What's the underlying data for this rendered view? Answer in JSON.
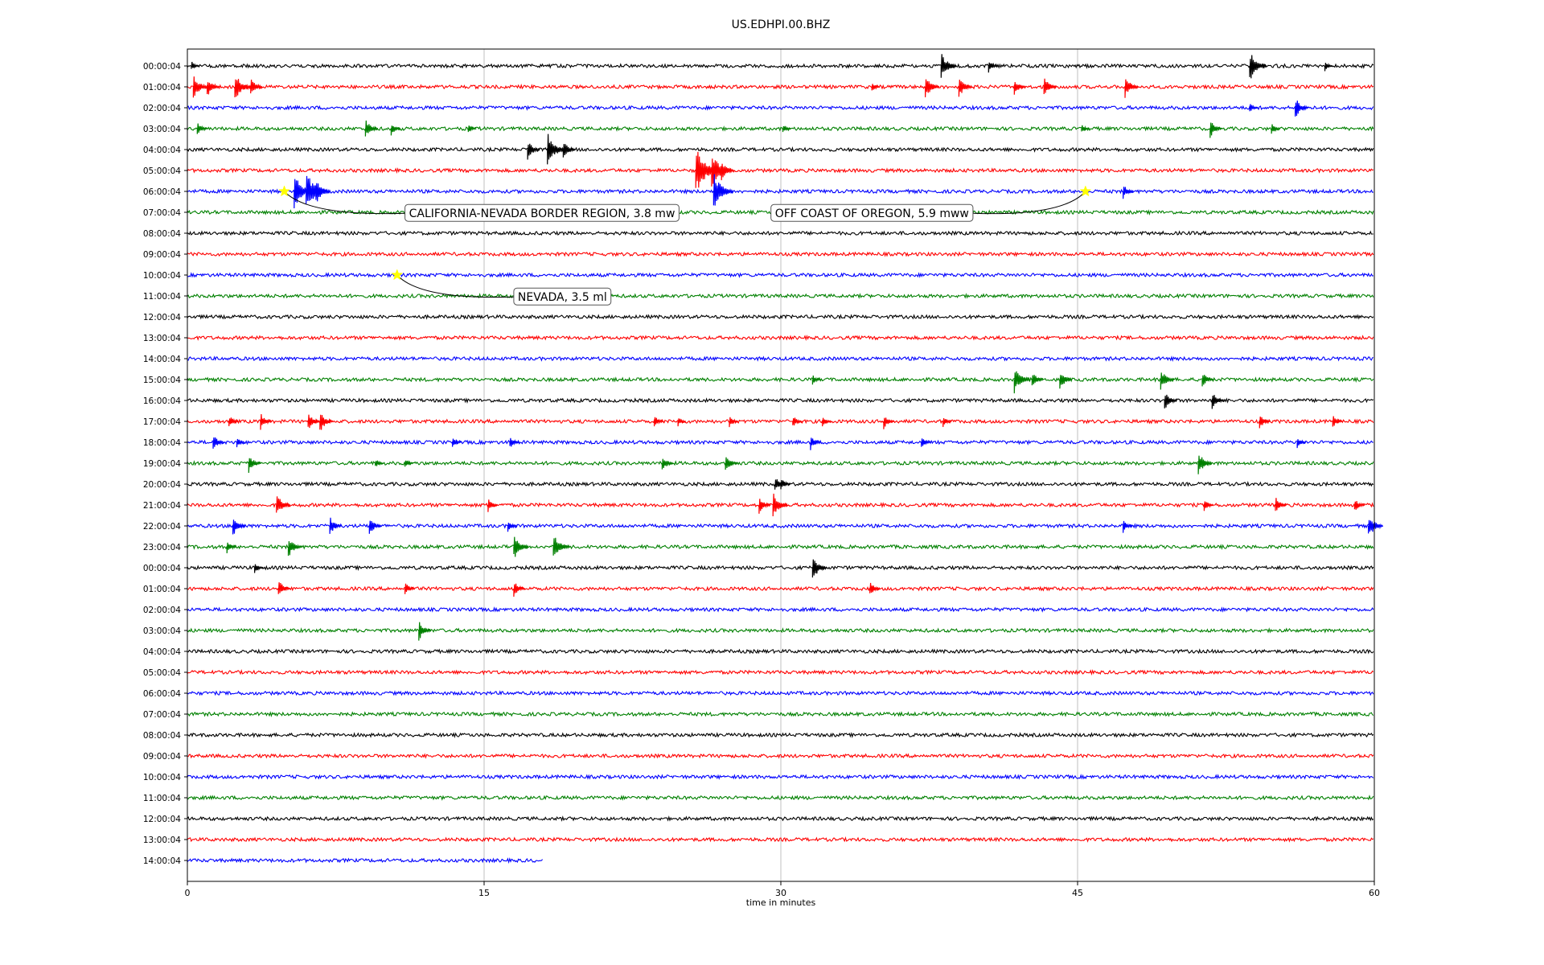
{
  "chart_data": {
    "type": "line",
    "title": "US.EDHPI.00.BHZ",
    "xlabel": "time in minutes",
    "ylabel": "",
    "xlim": [
      0,
      60
    ],
    "x_ticks": [
      "0",
      "15",
      "30",
      "45",
      "60"
    ],
    "x_tick_values": [
      0,
      15,
      30,
      45,
      60
    ],
    "grid": "vertical",
    "color_cycle": [
      "#000000",
      "#ff0000",
      "#0000ff",
      "#008000"
    ],
    "rows": [
      {
        "label": "00:00:04",
        "end": 60,
        "events": [
          {
            "t": 0.2,
            "a": 0.6
          },
          {
            "t": 38.1,
            "a": 1.6
          },
          {
            "t": 40.5,
            "a": 0.8
          },
          {
            "t": 53.7,
            "a": 1.8
          },
          {
            "t": 57.5,
            "a": 0.6
          }
        ]
      },
      {
        "label": "01:00:04",
        "end": 60,
        "events": [
          {
            "t": 0.3,
            "a": 1.5
          },
          {
            "t": 1.0,
            "a": 1.2
          },
          {
            "t": 2.4,
            "a": 1.7
          },
          {
            "t": 3.2,
            "a": 1.1
          },
          {
            "t": 34.6,
            "a": 0.6
          },
          {
            "t": 37.3,
            "a": 1.4
          },
          {
            "t": 39.0,
            "a": 1.3
          },
          {
            "t": 41.8,
            "a": 1.0
          },
          {
            "t": 43.3,
            "a": 1.2
          },
          {
            "t": 47.4,
            "a": 1.3
          }
        ]
      },
      {
        "label": "02:00:04",
        "end": 60,
        "events": [
          {
            "t": 53.7,
            "a": 0.6
          },
          {
            "t": 56.0,
            "a": 1.3
          }
        ]
      },
      {
        "label": "03:00:04",
        "end": 60,
        "events": [
          {
            "t": 0.5,
            "a": 0.8
          },
          {
            "t": 9.0,
            "a": 1.2
          },
          {
            "t": 10.3,
            "a": 0.8
          },
          {
            "t": 14.2,
            "a": 0.6
          },
          {
            "t": 30.1,
            "a": 0.6
          },
          {
            "t": 45.2,
            "a": 0.6
          },
          {
            "t": 51.7,
            "a": 1.1
          },
          {
            "t": 54.8,
            "a": 0.7
          }
        ]
      },
      {
        "label": "04:00:04",
        "end": 60,
        "events": [
          {
            "t": 17.2,
            "a": 1.2
          },
          {
            "t": 18.2,
            "a": 2.0
          },
          {
            "t": 19.0,
            "a": 1.1
          }
        ]
      },
      {
        "label": "05:00:04",
        "end": 60,
        "events": [
          {
            "t": 25.7,
            "a": 2.8
          },
          {
            "t": 26.5,
            "a": 2.2
          },
          {
            "t": 27.0,
            "a": 1.2
          }
        ]
      },
      {
        "label": "06:00:04",
        "end": 60,
        "events": [
          {
            "t": 5.4,
            "a": 2.2
          },
          {
            "t": 6.0,
            "a": 2.4
          },
          {
            "t": 6.5,
            "a": 1.5
          },
          {
            "t": 26.6,
            "a": 2.2
          },
          {
            "t": 47.3,
            "a": 0.9
          }
        ]
      },
      {
        "label": "07:00:04",
        "end": 60,
        "events": []
      },
      {
        "label": "08:00:04",
        "end": 60,
        "events": []
      },
      {
        "label": "09:00:04",
        "end": 60,
        "events": []
      },
      {
        "label": "10:00:04",
        "end": 60,
        "events": []
      },
      {
        "label": "11:00:04",
        "end": 60,
        "events": []
      },
      {
        "label": "12:00:04",
        "end": 60,
        "events": []
      },
      {
        "label": "13:00:04",
        "end": 60,
        "events": []
      },
      {
        "label": "14:00:04",
        "end": 60,
        "events": []
      },
      {
        "label": "15:00:04",
        "end": 60,
        "events": [
          {
            "t": 31.6,
            "a": 0.6
          },
          {
            "t": 41.8,
            "a": 1.6
          },
          {
            "t": 42.7,
            "a": 1.0
          },
          {
            "t": 44.1,
            "a": 1.2
          },
          {
            "t": 49.2,
            "a": 1.3
          },
          {
            "t": 51.3,
            "a": 1.0
          }
        ]
      },
      {
        "label": "16:00:04",
        "end": 60,
        "events": [
          {
            "t": 49.4,
            "a": 1.2
          },
          {
            "t": 51.8,
            "a": 1.1
          }
        ]
      },
      {
        "label": "17:00:04",
        "end": 60,
        "events": [
          {
            "t": 2.1,
            "a": 0.8
          },
          {
            "t": 3.7,
            "a": 1.0
          },
          {
            "t": 6.1,
            "a": 1.1
          },
          {
            "t": 6.7,
            "a": 1.3
          },
          {
            "t": 23.6,
            "a": 0.8
          },
          {
            "t": 24.8,
            "a": 0.6
          },
          {
            "t": 27.4,
            "a": 0.7
          },
          {
            "t": 30.6,
            "a": 0.8
          },
          {
            "t": 32.1,
            "a": 0.7
          },
          {
            "t": 35.2,
            "a": 0.9
          },
          {
            "t": 38.2,
            "a": 0.7
          },
          {
            "t": 54.2,
            "a": 0.9
          },
          {
            "t": 57.9,
            "a": 0.8
          }
        ]
      },
      {
        "label": "18:00:04",
        "end": 60,
        "events": [
          {
            "t": 1.3,
            "a": 1.0
          },
          {
            "t": 2.5,
            "a": 0.6
          },
          {
            "t": 13.4,
            "a": 0.7
          },
          {
            "t": 16.3,
            "a": 0.8
          },
          {
            "t": 31.5,
            "a": 0.9
          },
          {
            "t": 37.1,
            "a": 0.7
          },
          {
            "t": 56.1,
            "a": 0.7
          }
        ]
      },
      {
        "label": "19:00:04",
        "end": 60,
        "events": [
          {
            "t": 3.1,
            "a": 1.1
          },
          {
            "t": 9.5,
            "a": 0.6
          },
          {
            "t": 11.0,
            "a": 0.6
          },
          {
            "t": 24.0,
            "a": 1.0
          },
          {
            "t": 27.2,
            "a": 1.1
          },
          {
            "t": 51.1,
            "a": 1.4
          }
        ]
      },
      {
        "label": "20:00:04",
        "end": 60,
        "events": [
          {
            "t": 29.7,
            "a": 1.0
          },
          {
            "t": 30.0,
            "a": 0.8
          }
        ]
      },
      {
        "label": "21:00:04",
        "end": 60,
        "events": [
          {
            "t": 4.5,
            "a": 1.4
          },
          {
            "t": 15.2,
            "a": 0.8
          },
          {
            "t": 28.9,
            "a": 1.1
          },
          {
            "t": 29.6,
            "a": 1.5
          },
          {
            "t": 51.4,
            "a": 0.8
          },
          {
            "t": 55.0,
            "a": 1.0
          },
          {
            "t": 59.0,
            "a": 0.9
          }
        ]
      },
      {
        "label": "22:00:04",
        "end": 60,
        "events": [
          {
            "t": 2.3,
            "a": 1.2
          },
          {
            "t": 7.2,
            "a": 1.1
          },
          {
            "t": 9.2,
            "a": 1.1
          },
          {
            "t": 16.2,
            "a": 0.8
          },
          {
            "t": 47.3,
            "a": 0.8
          },
          {
            "t": 59.7,
            "a": 1.5
          }
        ]
      },
      {
        "label": "23:00:04",
        "end": 60,
        "events": [
          {
            "t": 2.0,
            "a": 0.8
          },
          {
            "t": 5.1,
            "a": 1.3
          },
          {
            "t": 16.5,
            "a": 1.5
          },
          {
            "t": 18.5,
            "a": 1.7
          }
        ]
      },
      {
        "label": "00:00:04",
        "end": 60,
        "events": [
          {
            "t": 3.4,
            "a": 0.7
          },
          {
            "t": 31.6,
            "a": 1.5
          }
        ]
      },
      {
        "label": "01:00:04",
        "end": 60,
        "events": [
          {
            "t": 4.6,
            "a": 1.1
          },
          {
            "t": 11.0,
            "a": 0.8
          },
          {
            "t": 16.5,
            "a": 1.0
          },
          {
            "t": 34.5,
            "a": 0.9
          }
        ]
      },
      {
        "label": "02:00:04",
        "end": 60,
        "events": []
      },
      {
        "label": "03:00:04",
        "end": 60,
        "events": [
          {
            "t": 11.7,
            "a": 1.2
          }
        ]
      },
      {
        "label": "04:00:04",
        "end": 60,
        "events": []
      },
      {
        "label": "05:00:04",
        "end": 60,
        "events": []
      },
      {
        "label": "06:00:04",
        "end": 60,
        "events": []
      },
      {
        "label": "07:00:04",
        "end": 60,
        "events": []
      },
      {
        "label": "08:00:04",
        "end": 60,
        "events": []
      },
      {
        "label": "09:00:04",
        "end": 60,
        "events": []
      },
      {
        "label": "10:00:04",
        "end": 60,
        "events": []
      },
      {
        "label": "11:00:04",
        "end": 60,
        "events": []
      },
      {
        "label": "12:00:04",
        "end": 60,
        "events": []
      },
      {
        "label": "13:00:04",
        "end": 60,
        "events": []
      },
      {
        "label": "14:00:04",
        "end": 18,
        "events": []
      }
    ],
    "annotations": [
      {
        "label": "CALIFORNIA-NEVADA BORDER REGION, 3.8 mw",
        "row": 6,
        "t": 4.9,
        "label_t": 11.0,
        "label_row": 7.2
      },
      {
        "label": "OFF COAST OF OREGON, 5.9 mww",
        "row": 6,
        "t": 45.4,
        "label_t": 29.5,
        "label_row": 7.2
      },
      {
        "label": "NEVADA, 3.5 ml",
        "row": 10,
        "t": 10.6,
        "label_t": 16.5,
        "label_row": 11.2
      }
    ],
    "marker_color": "#ffff00"
  }
}
